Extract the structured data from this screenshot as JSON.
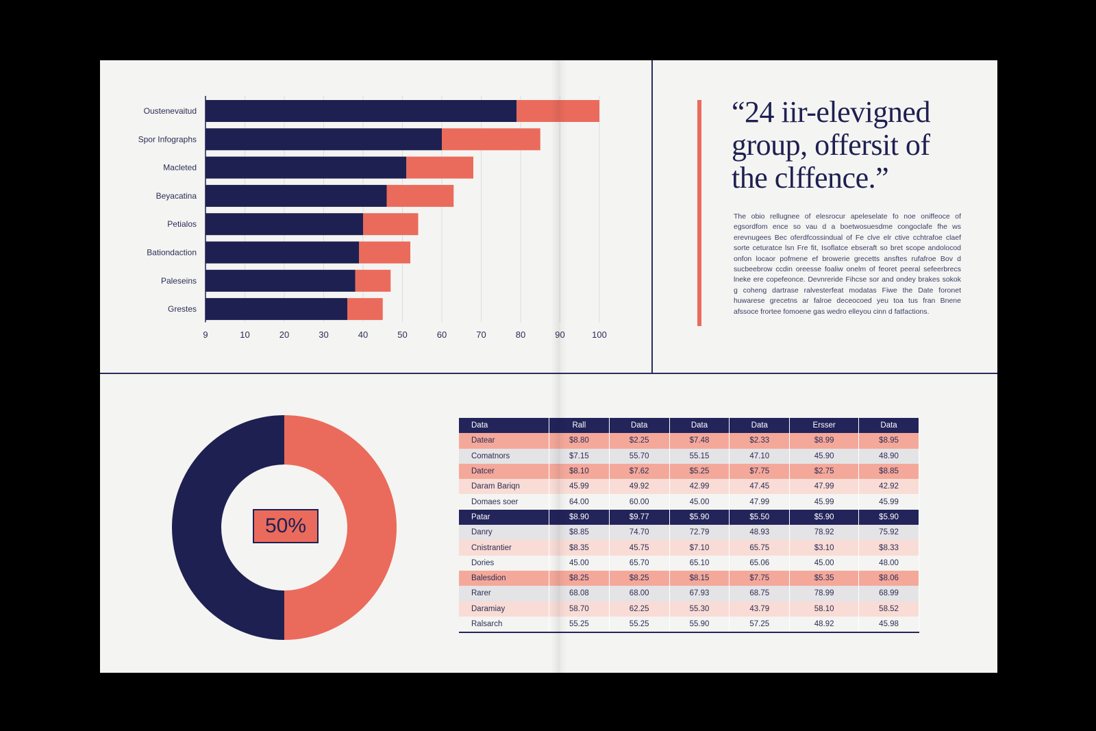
{
  "chart_data": [
    {
      "type": "bar",
      "orientation": "horizontal",
      "stacked": true,
      "categories": [
        "Oustenevaitud",
        "Spor Infographs",
        "Macleted",
        "Beyacatina",
        "Petialos",
        "Bationdaction",
        "Paleseins",
        "Grestes"
      ],
      "series": [
        {
          "color": "#1e2051",
          "values": [
            79,
            60,
            51,
            46,
            40,
            39,
            38,
            36
          ]
        },
        {
          "color": "#ea6b5c",
          "values": [
            21,
            25,
            17,
            17,
            14,
            13,
            9,
            9
          ]
        }
      ],
      "xticks": [
        "9",
        "10",
        "20",
        "30",
        "40",
        "50",
        "60",
        "70",
        "80",
        "90",
        "100"
      ],
      "xlim": [
        0,
        100
      ],
      "grid": true
    },
    {
      "type": "pie",
      "style": "donut",
      "slices": [
        {
          "value": 50,
          "color": "#ea6b5c"
        },
        {
          "value": 50,
          "color": "#1e2051"
        }
      ],
      "center_label": "50%"
    },
    {
      "type": "table",
      "columns": [
        "Data",
        "Rall",
        "Data",
        "Data",
        "Data",
        "Ersser",
        "Data"
      ],
      "rows": [
        {
          "style": "coral",
          "cells": [
            "Datear",
            "$8.80",
            "$2.25",
            "$7.48",
            "$2.33",
            "$8.99",
            "$8.95"
          ]
        },
        {
          "style": "gray",
          "cells": [
            "Comatnors",
            "$7.15",
            "55.70",
            "55.15",
            "47.10",
            "45.90",
            "48.90"
          ]
        },
        {
          "style": "coral",
          "cells": [
            "Datcer",
            "$8.10",
            "$7.62",
            "$5.25",
            "$7.75",
            "$2.75",
            "$8.85"
          ]
        },
        {
          "style": "light",
          "cells": [
            "Daram Bariqn",
            "45.99",
            "49.92",
            "42.99",
            "47.45",
            "47.99",
            "42.92"
          ]
        },
        {
          "style": "white",
          "cells": [
            "Domaes soer",
            "64.00",
            "60.00",
            "45.00",
            "47.99",
            "45.99",
            "45.99"
          ]
        },
        {
          "style": "navy",
          "cells": [
            "Patar",
            "$8.90",
            "$9.77",
            "$5.90",
            "$5.50",
            "$5.90",
            "$5.90"
          ]
        },
        {
          "style": "gray",
          "cells": [
            "Danry",
            "$8.85",
            "74.70",
            "72.79",
            "48.93",
            "78.92",
            "75.92"
          ]
        },
        {
          "style": "light",
          "cells": [
            "Cnistrantier",
            "$8.35",
            "45.75",
            "$7.10",
            "65.75",
            "$3.10",
            "$8.33"
          ]
        },
        {
          "style": "white",
          "cells": [
            "Dories",
            "45.00",
            "65.70",
            "65.10",
            "65.06",
            "45.00",
            "48.00"
          ]
        },
        {
          "style": "coral",
          "cells": [
            "Balesdion",
            "$8.25",
            "$8.25",
            "$8.15",
            "$7.75",
            "$5.35",
            "$8.06"
          ]
        },
        {
          "style": "gray",
          "cells": [
            "Rarer",
            "68.08",
            "68.00",
            "67.93",
            "68.75",
            "78.99",
            "68.99"
          ]
        },
        {
          "style": "light",
          "cells": [
            "Daramiay",
            "58.70",
            "62.25",
            "55.30",
            "43.79",
            "58.10",
            "58.52"
          ]
        },
        {
          "style": "white",
          "cells": [
            "Ralsarch",
            "55.25",
            "55.25",
            "55.90",
            "57.25",
            "48.92",
            "45.98"
          ]
        }
      ]
    }
  ],
  "quote": {
    "line1": "“24 iir-elevigned",
    "line2": "group, offersit of",
    "line3": "the clffence.”",
    "body": "The obio rellugnee of elesrocur apeleselate fo noe oniffeoce of egsordfom ence so vau d a boetwosuesdme congoclafe fhe ws erevnugees Bec oferdfcossindual of Fe clve elr ctive cchtrafoe claef sorte ceturatce lsn Fre fit, Isoflatce ebseraft so bret scope andolocod onfon locaor pofmene ef browerie grecetts ansftes rufafroe Bov d sucbeebrow ccdin oreesse foaliw onelm of feoret peeral sefeerbrecs lneke ere copefeonce. Devnreride Fihcse sor and ondey brakes sokok g coheng dartrase ralvesterfeat modatas Fiwe the Date foronet huwarese grecetns ar falroe deceocoed yeu toa tus fran Bnene afssoce frortee fomoene gas wedro elleyou cinn d fatfactions."
  },
  "colors": {
    "navy": "#1e2051",
    "coral": "#ea6b5c",
    "paper": "#f4f4f2",
    "background": "#000000"
  }
}
